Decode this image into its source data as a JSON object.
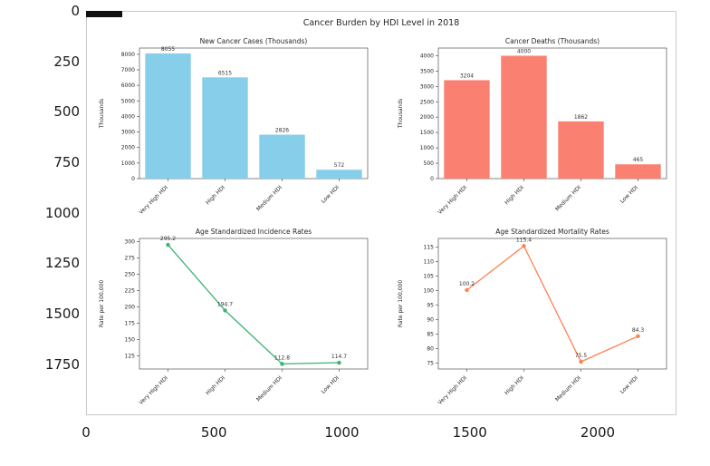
{
  "figure": {
    "title": "Cancer Burden by HDI Level in 2018"
  },
  "outer_axis": {
    "yticks": [
      0,
      250,
      500,
      750,
      1000,
      1250,
      1500,
      1750
    ],
    "xticks": [
      0,
      500,
      1000,
      1500,
      2000
    ]
  },
  "colors": {
    "cases_bar": "#87ceeb",
    "deaths_bar": "#fa8072",
    "incidence_line": "#3cb371",
    "mortality_line": "#ff7f50"
  },
  "chart_data": [
    {
      "type": "bar",
      "title": "New Cancer Cases (Thousands)",
      "ylabel": "Thousands",
      "categories": [
        "Very High HDI",
        "High HDI",
        "Medium HDI",
        "Low HDI"
      ],
      "values": [
        8055,
        6515,
        2826,
        572
      ],
      "value_labels": [
        "8055",
        "6515",
        "2826",
        "572"
      ],
      "yticks": [
        0,
        1000,
        2000,
        3000,
        4000,
        5000,
        6000,
        7000,
        8000
      ],
      "ylim": [
        0,
        8400
      ],
      "color": "#87ceeb",
      "grid": false,
      "legend": "none"
    },
    {
      "type": "bar",
      "title": "Cancer Deaths (Thousands)",
      "ylabel": "Thousands",
      "categories": [
        "Very High HDI",
        "High HDI",
        "Medium HDI",
        "Low HDI"
      ],
      "values": [
        3204,
        4000,
        1862,
        465
      ],
      "value_labels": [
        "3204",
        "4000",
        "1862",
        "465"
      ],
      "yticks": [
        0,
        500,
        1000,
        1500,
        2000,
        2500,
        3000,
        3500,
        4000
      ],
      "ylim": [
        0,
        4250
      ],
      "color": "#fa8072",
      "grid": false,
      "legend": "none"
    },
    {
      "type": "line",
      "title": "Age Standardized Incidence Rates",
      "ylabel": "Rate per 100,000",
      "categories": [
        "Very High HDI",
        "High HDI",
        "Medium HDI",
        "Low HDI"
      ],
      "values": [
        295.2,
        194.7,
        112.8,
        114.7
      ],
      "value_labels": [
        "295.2",
        "194.7",
        "112.8",
        "114.7"
      ],
      "yticks": [
        125,
        150,
        175,
        200,
        225,
        250,
        275,
        300
      ],
      "ylim": [
        105,
        305
      ],
      "color": "#3cb371",
      "grid": false,
      "legend": "none"
    },
    {
      "type": "line",
      "title": "Age Standardized Mortality Rates",
      "ylabel": "Rate per 100,000",
      "categories": [
        "Very High HDI",
        "High HDI",
        "Medium HDI",
        "Low HDI"
      ],
      "values": [
        100.2,
        115.4,
        75.5,
        84.3
      ],
      "value_labels": [
        "100.2",
        "115.4",
        "75.5",
        "84.3"
      ],
      "yticks": [
        75,
        80,
        85,
        90,
        95,
        100,
        105,
        110,
        115
      ],
      "ylim": [
        73,
        118
      ],
      "color": "#ff7f50",
      "grid": false,
      "legend": "none"
    }
  ]
}
